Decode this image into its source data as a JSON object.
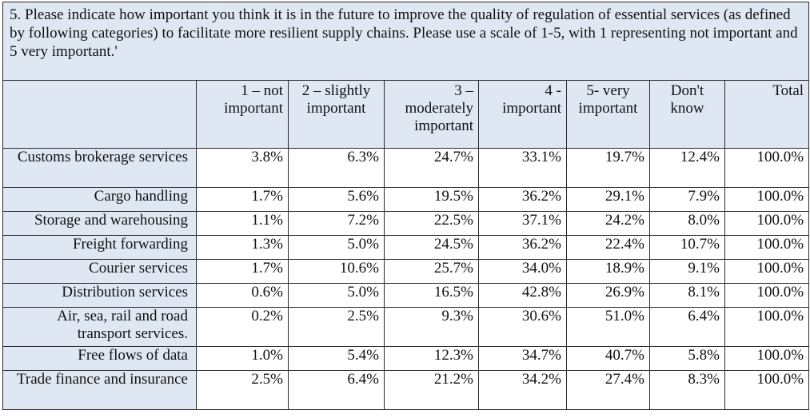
{
  "question": "5. Please indicate how important you think it is in the future to improve the quality of regulation of essential services (as defined by following categories) to facilitate more resilient supply chains. Please use a scale of 1-5, with 1 representing not important and 5 very important.'",
  "columns": [
    "1 – not important",
    "2 – slightly important",
    "3 – moderately important",
    "4 - important",
    "5- very important",
    "Don't know",
    "Total"
  ],
  "rows": [
    {
      "label": "Customs brokerage services",
      "values": [
        "3.8%",
        "6.3%",
        "24.7%",
        "33.1%",
        "19.7%",
        "12.4%",
        "100.0%"
      ]
    },
    {
      "label": "Cargo handling",
      "values": [
        "1.7%",
        "5.6%",
        "19.5%",
        "36.2%",
        "29.1%",
        "7.9%",
        "100.0%"
      ]
    },
    {
      "label": "Storage and warehousing",
      "values": [
        "1.1%",
        "7.2%",
        "22.5%",
        "37.1%",
        "24.2%",
        "8.0%",
        "100.0%"
      ]
    },
    {
      "label": "Freight forwarding",
      "values": [
        "1.3%",
        "5.0%",
        "24.5%",
        "36.2%",
        "22.4%",
        "10.7%",
        "100.0%"
      ]
    },
    {
      "label": "Courier services",
      "values": [
        "1.7%",
        "10.6%",
        "25.7%",
        "34.0%",
        "18.9%",
        "9.1%",
        "100.0%"
      ]
    },
    {
      "label": "Distribution services",
      "values": [
        "0.6%",
        "5.0%",
        "16.5%",
        "42.8%",
        "26.9%",
        "8.1%",
        "100.0%"
      ]
    },
    {
      "label": "Air, sea, rail and road transport services.",
      "values": [
        "0.2%",
        "2.5%",
        "9.3%",
        "30.6%",
        "51.0%",
        "6.4%",
        "100.0%"
      ]
    },
    {
      "label": "Free flows of data",
      "values": [
        "1.0%",
        "5.4%",
        "12.3%",
        "34.7%",
        "40.7%",
        "5.8%",
        "100.0%"
      ]
    },
    {
      "label": "Trade finance and insurance",
      "values": [
        "2.5%",
        "6.4%",
        "21.2%",
        "34.2%",
        "27.4%",
        "8.3%",
        "100.0%"
      ]
    }
  ],
  "colors": {
    "header_fill": "#dfe7f2",
    "border": "#2a2a2a"
  }
}
